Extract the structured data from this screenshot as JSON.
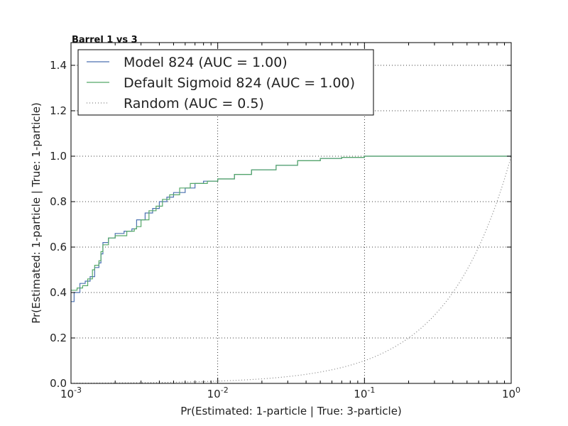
{
  "chart_data": {
    "type": "line",
    "title": "Barrel 1 vs 3",
    "xlabel": "Pr(Estimated: 1-particle | True: 3-particle)",
    "ylabel": "Pr(Estimated: 1-particle | True: 1-particle)",
    "x_scale": "log",
    "xlim": [
      0.001,
      1
    ],
    "ylim": [
      0,
      1.5
    ],
    "grid": true,
    "legend_position": "top-left",
    "x_ticks": [
      {
        "base": "10",
        "exp": "-3"
      },
      {
        "base": "10",
        "exp": "-2"
      },
      {
        "base": "10",
        "exp": "-1"
      },
      {
        "base": "10",
        "exp": "0"
      }
    ],
    "y_ticks": [
      "0.0",
      "0.2",
      "0.4",
      "0.6",
      "0.8",
      "1.0",
      "1.2",
      "1.4"
    ],
    "y_tick_values": [
      0,
      0.2,
      0.4,
      0.6,
      0.8,
      1.0,
      1.2,
      1.4
    ],
    "series": [
      {
        "name": "Model 824 (AUC = 1.00)",
        "color": "#4c72b0",
        "style": "step",
        "points": [
          [
            0.001,
            0.36
          ],
          [
            0.00105,
            0.4
          ],
          [
            0.00115,
            0.44
          ],
          [
            0.00125,
            0.45
          ],
          [
            0.00135,
            0.47
          ],
          [
            0.00145,
            0.51
          ],
          [
            0.00155,
            0.53
          ],
          [
            0.0016,
            0.57
          ],
          [
            0.00165,
            0.62
          ],
          [
            0.0018,
            0.64
          ],
          [
            0.002,
            0.66
          ],
          [
            0.0023,
            0.67
          ],
          [
            0.0026,
            0.68
          ],
          [
            0.0028,
            0.72
          ],
          [
            0.0032,
            0.75
          ],
          [
            0.0036,
            0.77
          ],
          [
            0.004,
            0.8
          ],
          [
            0.0045,
            0.82
          ],
          [
            0.005,
            0.84
          ],
          [
            0.006,
            0.86
          ],
          [
            0.007,
            0.88
          ],
          [
            0.008,
            0.89
          ],
          [
            0.01,
            0.9
          ],
          [
            0.013,
            0.92
          ],
          [
            0.017,
            0.94
          ],
          [
            0.025,
            0.96
          ],
          [
            0.035,
            0.98
          ],
          [
            0.05,
            0.99
          ],
          [
            0.07,
            0.995
          ],
          [
            0.1,
            1.0
          ],
          [
            0.2,
            1.0
          ],
          [
            0.5,
            1.0
          ],
          [
            1.0,
            1.0
          ]
        ]
      },
      {
        "name": "Default Sigmoid 824 (AUC = 1.00)",
        "color": "#55a868",
        "style": "step",
        "points": [
          [
            0.001,
            0.41
          ],
          [
            0.0011,
            0.42
          ],
          [
            0.0012,
            0.43
          ],
          [
            0.0013,
            0.46
          ],
          [
            0.0014,
            0.5
          ],
          [
            0.00145,
            0.52
          ],
          [
            0.00155,
            0.54
          ],
          [
            0.0016,
            0.58
          ],
          [
            0.00165,
            0.61
          ],
          [
            0.0018,
            0.64
          ],
          [
            0.002,
            0.65
          ],
          [
            0.0024,
            0.67
          ],
          [
            0.0027,
            0.68
          ],
          [
            0.0028,
            0.69
          ],
          [
            0.003,
            0.72
          ],
          [
            0.0034,
            0.76
          ],
          [
            0.0038,
            0.78
          ],
          [
            0.0042,
            0.81
          ],
          [
            0.0047,
            0.83
          ],
          [
            0.0055,
            0.86
          ],
          [
            0.0065,
            0.88
          ],
          [
            0.0085,
            0.89
          ],
          [
            0.01,
            0.9
          ],
          [
            0.013,
            0.92
          ],
          [
            0.017,
            0.94
          ],
          [
            0.025,
            0.96
          ],
          [
            0.035,
            0.98
          ],
          [
            0.05,
            0.99
          ],
          [
            0.07,
            0.995
          ],
          [
            0.1,
            1.0
          ],
          [
            0.2,
            1.0
          ],
          [
            0.5,
            1.0
          ],
          [
            1.0,
            1.0
          ]
        ]
      },
      {
        "name": "Random (AUC = 0.5)",
        "color": "#808080",
        "style": "dotted",
        "points": "y=x"
      }
    ]
  }
}
